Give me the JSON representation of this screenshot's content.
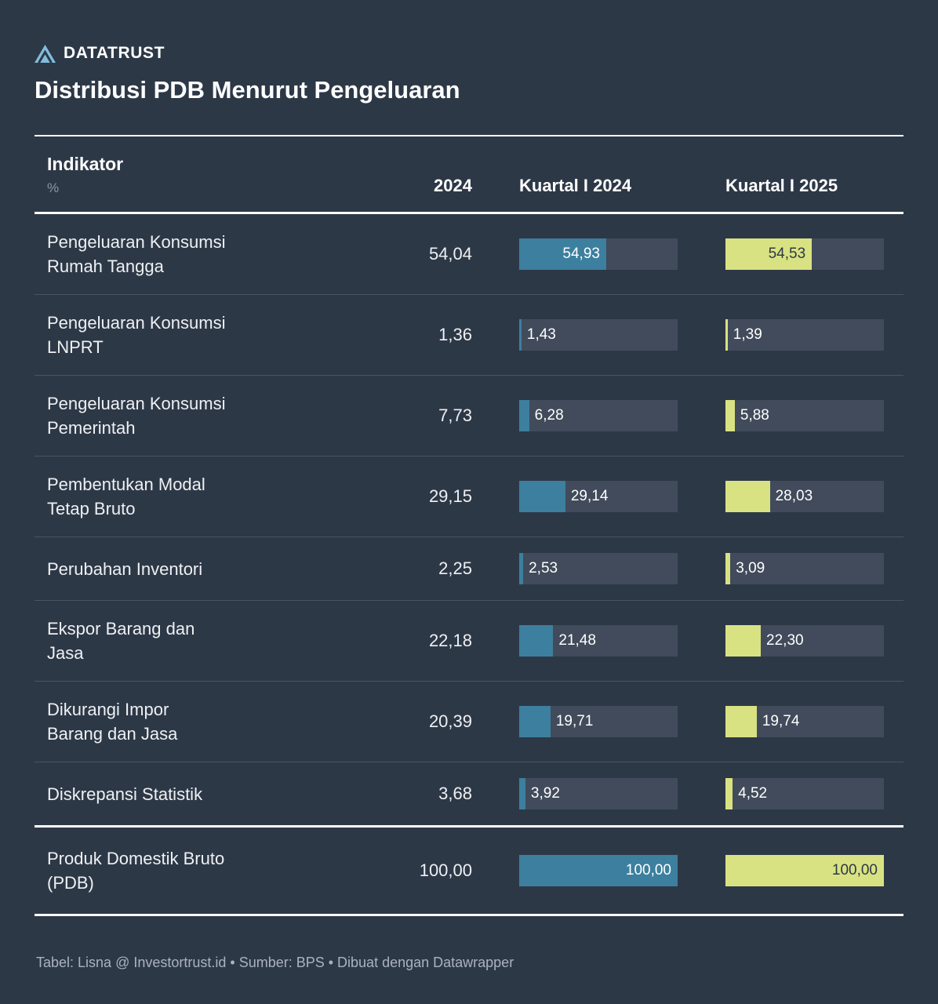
{
  "brand": {
    "logo_text": "DATATRUST"
  },
  "title": "Distribusi PDB Menurut Pengeluaran",
  "colors": {
    "background": "#2d3847",
    "bar_track": "#414b5b",
    "teal": "#3d7f9e",
    "yellow": "#d9e282",
    "label_on_yellow": "#2d3847",
    "label_on_teal": "#ffffff",
    "logo_blue": "#82bcdc"
  },
  "table": {
    "header": {
      "indicator_label": "Indikator",
      "unit_label": "%",
      "col_2024": "2024",
      "col_q1_2024": "Kuartal I 2024",
      "col_q1_2025": "Kuartal I 2025"
    },
    "rows": [
      {
        "label": "Pengeluaran Konsumsi\nRumah Tangga",
        "v2024": "54,04",
        "bars": [
          {
            "value": 54.93,
            "display": "54,93"
          },
          {
            "value": 54.53,
            "display": "54,53"
          }
        ],
        "total": false
      },
      {
        "label": "Pengeluaran Konsumsi\nLNPRT",
        "v2024": "1,36",
        "bars": [
          {
            "value": 1.43,
            "display": "1,43"
          },
          {
            "value": 1.39,
            "display": "1,39"
          }
        ],
        "total": false
      },
      {
        "label": "Pengeluaran Konsumsi\nPemerintah",
        "v2024": "7,73",
        "bars": [
          {
            "value": 6.28,
            "display": "6,28"
          },
          {
            "value": 5.88,
            "display": "5,88"
          }
        ],
        "total": false
      },
      {
        "label": "Pembentukan Modal\nTetap Bruto",
        "v2024": "29,15",
        "bars": [
          {
            "value": 29.14,
            "display": "29,14"
          },
          {
            "value": 28.03,
            "display": "28,03"
          }
        ],
        "total": false
      },
      {
        "label": "Perubahan Inventori",
        "v2024": "2,25",
        "bars": [
          {
            "value": 2.53,
            "display": "2,53"
          },
          {
            "value": 3.09,
            "display": "3,09"
          }
        ],
        "total": false
      },
      {
        "label": "Ekspor Barang dan\nJasa",
        "v2024": "22,18",
        "bars": [
          {
            "value": 21.48,
            "display": "21,48"
          },
          {
            "value": 22.3,
            "display": "22,30"
          }
        ],
        "total": false
      },
      {
        "label": "Dikurangi Impor\nBarang dan Jasa",
        "v2024": "20,39",
        "bars": [
          {
            "value": 19.71,
            "display": "19,71"
          },
          {
            "value": 19.74,
            "display": "19,74"
          }
        ],
        "total": false
      },
      {
        "label": "Diskrepansi Statistik",
        "v2024": "3,68",
        "bars": [
          {
            "value": 3.92,
            "display": "3,92"
          },
          {
            "value": 4.52,
            "display": "4,52"
          }
        ],
        "total": false
      },
      {
        "label": "Produk Domestik Bruto\n(PDB)",
        "v2024": "100,00",
        "bars": [
          {
            "value": 100.0,
            "display": "100,00"
          },
          {
            "value": 100.0,
            "display": "100,00"
          }
        ],
        "total": true
      }
    ]
  },
  "footer": {
    "credit": "Tabel: Lisna @ Investortrust.id • Sumber: BPS • Dibuat dengan Datawrapper"
  },
  "chart_data": {
    "type": "table",
    "title": "Distribusi PDB Menurut Pengeluaran",
    "unit": "%",
    "bar_scale": [
      0,
      100
    ],
    "categories": [
      "Pengeluaran Konsumsi Rumah Tangga",
      "Pengeluaran Konsumsi LNPRT",
      "Pengeluaran Konsumsi Pemerintah",
      "Pembentukan Modal Tetap Bruto",
      "Perubahan Inventori",
      "Ekspor Barang dan Jasa",
      "Dikurangi Impor Barang dan Jasa",
      "Diskrepansi Statistik",
      "Produk Domestik Bruto (PDB)"
    ],
    "series": [
      {
        "name": "2024",
        "values": [
          54.04,
          1.36,
          7.73,
          29.15,
          2.25,
          22.18,
          20.39,
          3.68,
          100.0
        ]
      },
      {
        "name": "Kuartal I 2024",
        "values": [
          54.93,
          1.43,
          6.28,
          29.14,
          2.53,
          21.48,
          19.71,
          3.92,
          100.0
        ]
      },
      {
        "name": "Kuartal I 2025",
        "values": [
          54.53,
          1.39,
          5.88,
          28.03,
          3.09,
          22.3,
          19.74,
          4.52,
          100.0
        ]
      }
    ],
    "legend_position": "column-headers",
    "grid": false
  }
}
